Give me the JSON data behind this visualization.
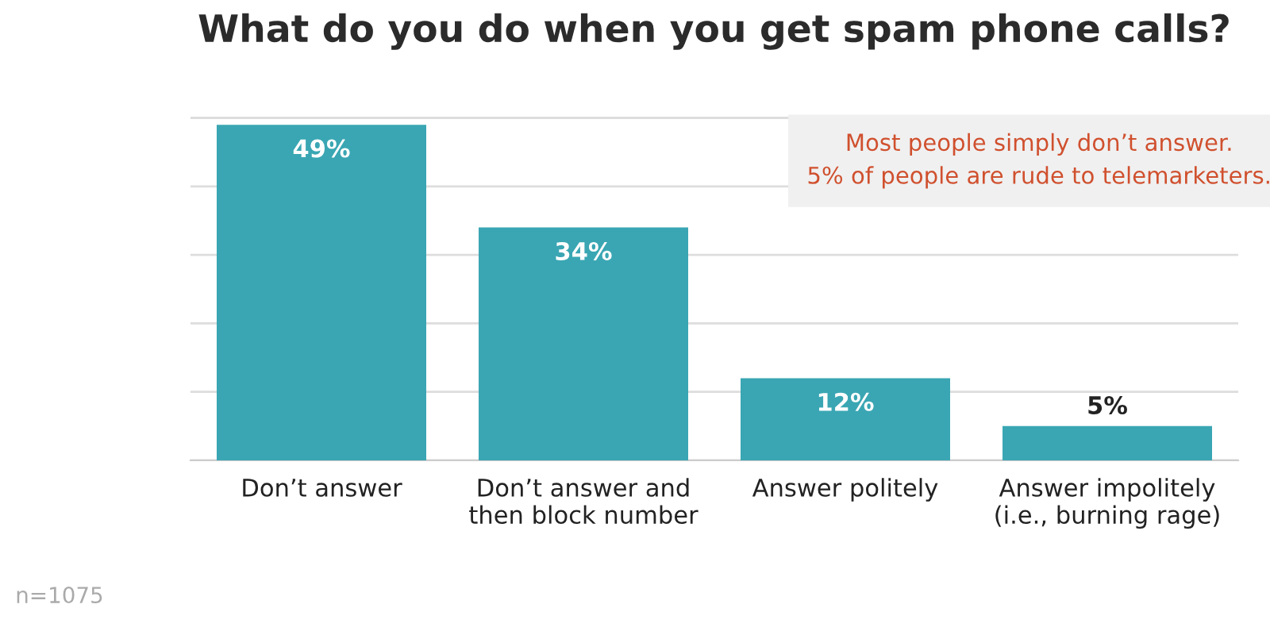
{
  "chart_data": {
    "type": "bar",
    "title": "What do you do when you get spam phone calls?",
    "categories": [
      "Don’t answer",
      "Don’t answer and\nthen block number",
      "Answer politely",
      "Answer impolitely\n(i.e., burning rage)"
    ],
    "values": [
      49,
      34,
      12,
      5
    ],
    "color": "#3aa6b3",
    "value_labels": [
      "49%",
      "34%",
      "12%",
      "5%"
    ],
    "tick_labels": "x",
    "grid": "y",
    "annotations": [
      "Most people simply don’t answer.\n5% of people are rude to telemarketers.",
      "n=1075"
    ]
  }
}
